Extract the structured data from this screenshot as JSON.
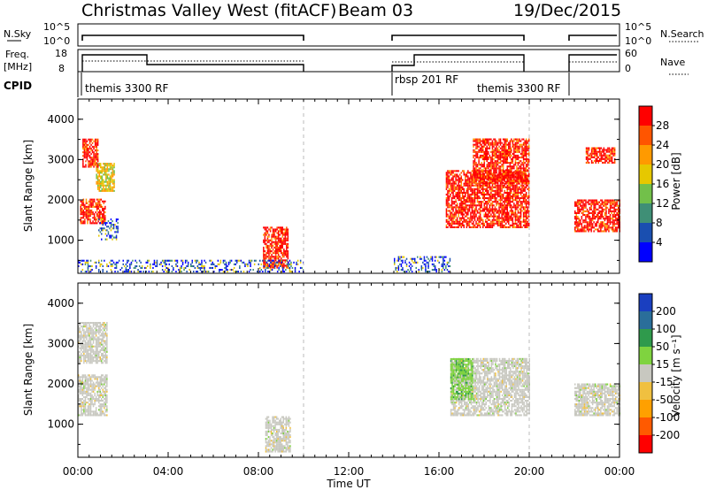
{
  "header": {
    "title": "Christmas Valley West (fitACF)",
    "beam": "Beam 03",
    "date": "19/Dec/2015"
  },
  "nsky_panel": {
    "left_label": "N.Sky",
    "right_label": "N.Search",
    "left_ticks": [
      "10^5",
      "10^0"
    ],
    "right_ticks": [
      "10^5",
      "10^0"
    ]
  },
  "freq_panel": {
    "left_label_line1": "Freq.",
    "left_label_line2": "[MHz]",
    "right_label": "Nave",
    "left_ticks": [
      "18",
      "8"
    ],
    "right_ticks": [
      "60",
      "0"
    ]
  },
  "cpid_panel": {
    "label": "CPID",
    "names": [
      "themis 3300 RF",
      "rbsp 201 RF",
      "themis 3300 RF"
    ]
  },
  "colors": {
    "power_scale": [
      "#0000ff",
      "#1a4fb0",
      "#3f8f76",
      "#72c04a",
      "#e6c800",
      "#ff9a00",
      "#ff5500",
      "#ff0000"
    ],
    "velocity_scale": [
      "#1a3fc0",
      "#2a6e9a",
      "#2f9a4c",
      "#7fd33f",
      "#c8c8c0",
      "#f0c040",
      "#ffa000",
      "#ff5a00",
      "#ff0000"
    ],
    "gray": "#c8c8c0"
  },
  "chart_data": [
    {
      "type": "heatmap",
      "name": "power",
      "ylabel": "Slant Range [km]",
      "ylim": [
        180,
        4500
      ],
      "yticks": [
        "1000",
        "2000",
        "3000",
        "4000"
      ],
      "xlim": [
        0,
        24
      ],
      "xticks": [
        "00:00",
        "04:00",
        "08:00",
        "12:00",
        "16:00",
        "20:00",
        "00:00"
      ],
      "colorbar": {
        "label": "Power [dB]",
        "ticks": [
          "4",
          "8",
          "12",
          "16",
          "20",
          "24",
          "28"
        ],
        "range": [
          0,
          32
        ]
      },
      "data_gaps_hours": [
        [
          10.0,
          14.0
        ],
        [
          20.0,
          22.0
        ]
      ],
      "echo_regions": [
        {
          "t": [
            0.1,
            1.2
          ],
          "r": [
            1400,
            2000
          ],
          "power": "high"
        },
        {
          "t": [
            0.8,
            1.6
          ],
          "r": [
            2200,
            2900
          ],
          "power": "medium"
        },
        {
          "t": [
            0.2,
            0.9
          ],
          "r": [
            2800,
            3500
          ],
          "power": "high"
        },
        {
          "t": [
            0.9,
            1.8
          ],
          "r": [
            1000,
            1500
          ],
          "power": "low"
        },
        {
          "t": [
            8.2,
            9.3
          ],
          "r": [
            300,
            1300
          ],
          "power": "high"
        },
        {
          "t": [
            0.0,
            10.0
          ],
          "r": [
            200,
            500
          ],
          "power": "low"
        },
        {
          "t": [
            16.3,
            20.0
          ],
          "r": [
            1300,
            2700
          ],
          "power": "high"
        },
        {
          "t": [
            17.5,
            20.0
          ],
          "r": [
            2400,
            3500
          ],
          "power": "high"
        },
        {
          "t": [
            22.0,
            24.0
          ],
          "r": [
            1200,
            2000
          ],
          "power": "high"
        },
        {
          "t": [
            22.5,
            23.8
          ],
          "r": [
            2900,
            3300
          ],
          "power": "high"
        },
        {
          "t": [
            14.0,
            16.5
          ],
          "r": [
            200,
            600
          ],
          "power": "low"
        }
      ]
    },
    {
      "type": "heatmap",
      "name": "velocity",
      "ylabel": "Slant Range [km]",
      "ylim": [
        180,
        4500
      ],
      "yticks": [
        "1000",
        "2000",
        "3000",
        "4000"
      ],
      "xlim": [
        0,
        24
      ],
      "xticks": [
        "00:00",
        "04:00",
        "08:00",
        "12:00",
        "16:00",
        "20:00",
        "00:00"
      ],
      "xlabel": "Time UT",
      "colorbar": {
        "label": "Velocity [m s⁻¹]",
        "ticks": [
          "200",
          "100",
          "50",
          "15",
          "-15",
          "-50",
          "-100",
          "-200"
        ],
        "range": [
          -250,
          250
        ]
      },
      "data_gaps_hours": [
        [
          10.0,
          14.0
        ],
        [
          20.0,
          22.0
        ]
      ],
      "echo_regions": [
        {
          "t": [
            0.0,
            1.3
          ],
          "r": [
            1200,
            2200
          ],
          "velocity": "ground scatter"
        },
        {
          "t": [
            0.0,
            1.3
          ],
          "r": [
            2500,
            3500
          ],
          "velocity": "ground scatter"
        },
        {
          "t": [
            8.3,
            9.4
          ],
          "r": [
            300,
            1200
          ],
          "velocity": "ground scatter"
        },
        {
          "t": [
            16.5,
            20.0
          ],
          "r": [
            1200,
            2600
          ],
          "velocity": "ground scatter"
        },
        {
          "t": [
            16.5,
            17.5
          ],
          "r": [
            1600,
            2600
          ],
          "velocity": "50"
        },
        {
          "t": [
            22.0,
            24.0
          ],
          "r": [
            1200,
            2000
          ],
          "velocity": "ground scatter"
        }
      ]
    }
  ]
}
